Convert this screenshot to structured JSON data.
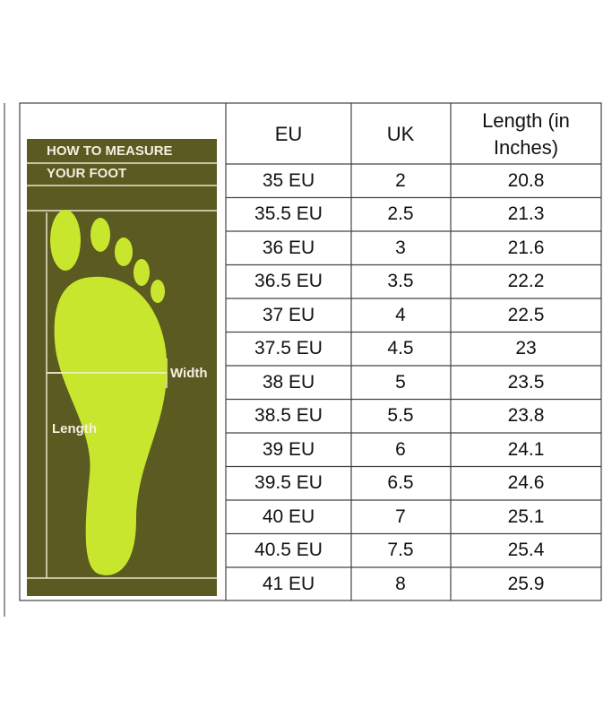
{
  "panel": {
    "title_line1": "HOW TO MEASURE",
    "title_line2": "YOUR FOOT",
    "width_label": "Width",
    "length_label": "Length"
  },
  "table": {
    "headers": [
      "EU",
      "UK",
      "Length (in Inches)"
    ],
    "rows": [
      [
        "35 EU",
        "2",
        "20.8"
      ],
      [
        "35.5 EU",
        "2.5",
        "21.3"
      ],
      [
        "36 EU",
        "3",
        "21.6"
      ],
      [
        "36.5 EU",
        "3.5",
        "22.2"
      ],
      [
        "37 EU",
        "4",
        "22.5"
      ],
      [
        "37.5 EU",
        "4.5",
        "23"
      ],
      [
        "38 EU",
        "5",
        "23.5"
      ],
      [
        "38.5 EU",
        "5.5",
        "23.8"
      ],
      [
        "39 EU",
        "6",
        "24.1"
      ],
      [
        "39.5 EU",
        "6.5",
        "24.6"
      ],
      [
        "40 EU",
        "7",
        "25.1"
      ],
      [
        "40.5 EU",
        "7.5",
        "25.4"
      ],
      [
        "41 EU",
        "8",
        "25.9"
      ]
    ]
  }
}
